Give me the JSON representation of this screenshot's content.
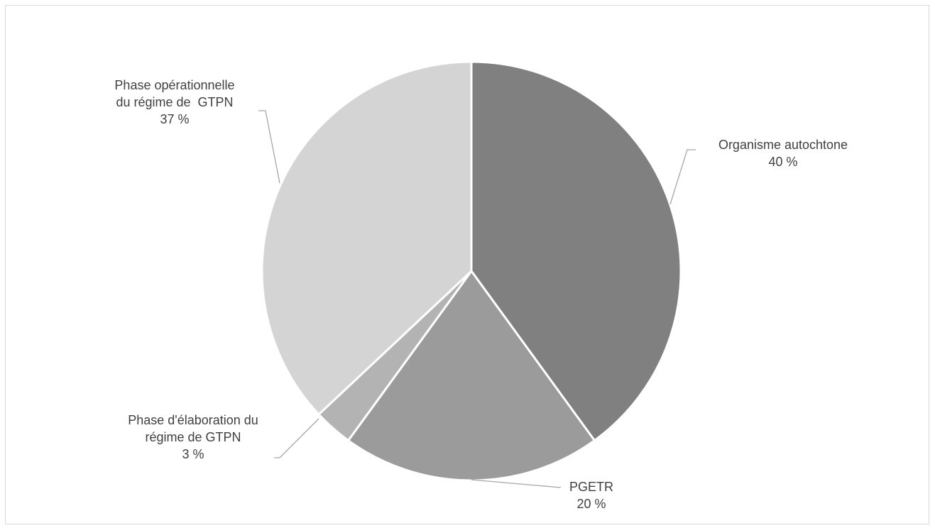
{
  "chart_data": {
    "type": "pie",
    "start_angle_deg": 0,
    "direction": "clockwise",
    "slices": [
      {
        "label_lines": [
          "Organisme autochtone"
        ],
        "value": 40,
        "value_label": "40 %",
        "color": "#808080"
      },
      {
        "label_lines": [
          "PGETR"
        ],
        "value": 20,
        "value_label": "20 %",
        "color": "#9b9b9b"
      },
      {
        "label_lines": [
          "Phase d'élaboration du",
          "régime de GTPN"
        ],
        "value": 3,
        "value_label": "3 %",
        "color": "#b3b3b3"
      },
      {
        "label_lines": [
          "Phase opérationnelle",
          "du régime de  GTPN"
        ],
        "value": 37,
        "value_label": "37 %",
        "color": "#d4d4d4"
      }
    ],
    "slice_border_color": "#ffffff",
    "leader_color": "#a6a6a6",
    "label_color": "#404040",
    "legend": "none"
  }
}
